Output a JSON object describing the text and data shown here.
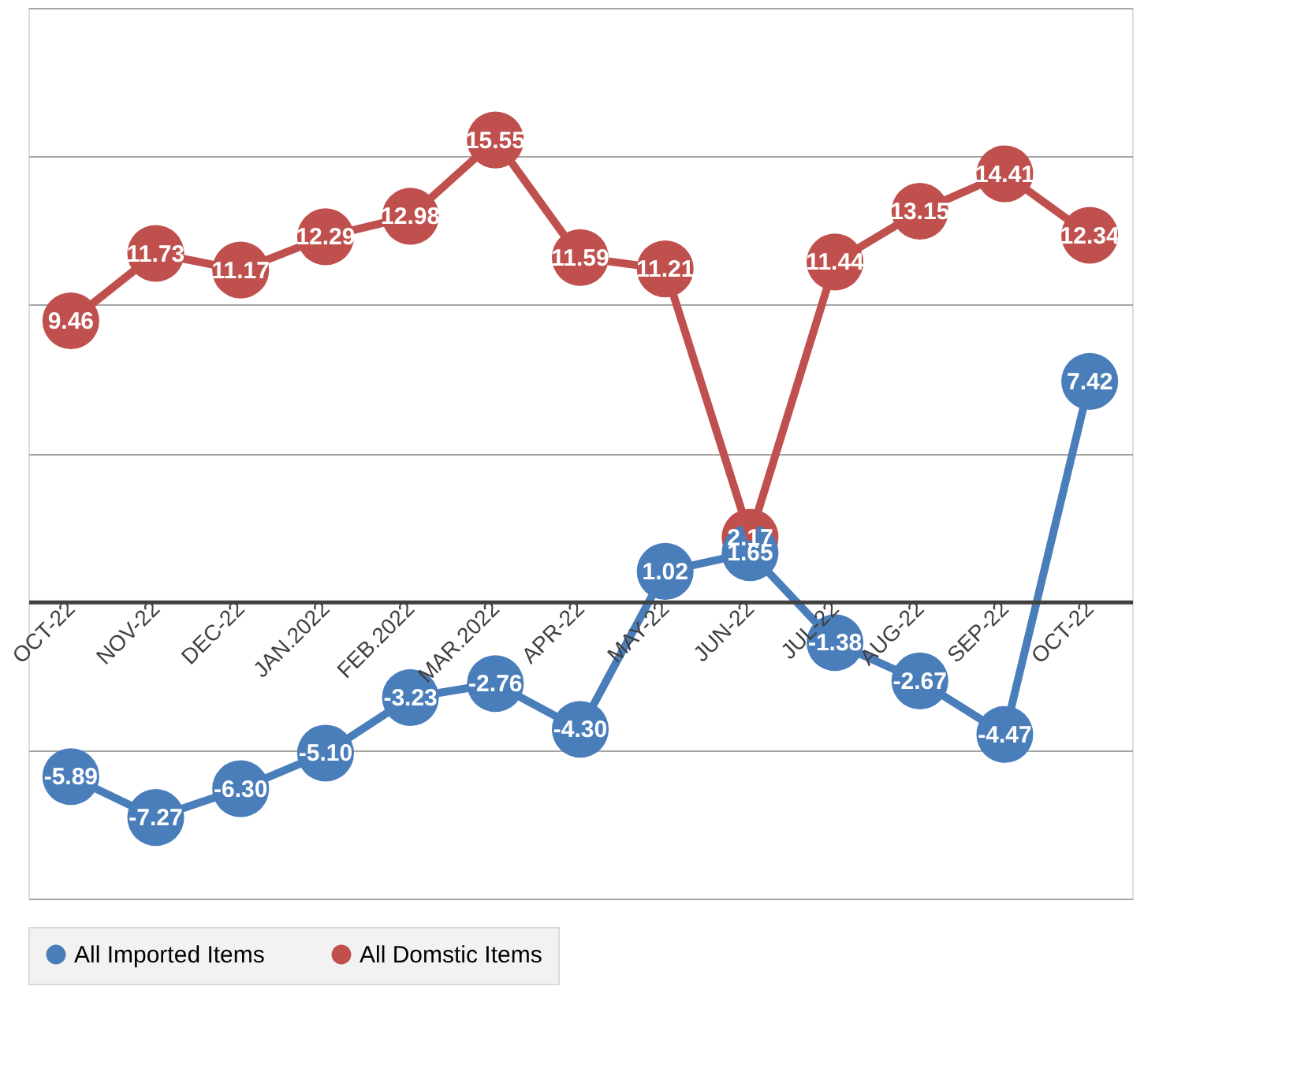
{
  "chart_data": {
    "type": "line",
    "categories": [
      "OCT-22",
      "NOV-22",
      "DEC-22",
      "JAN.2022",
      "FEB.2022",
      "MAR.2022",
      "APR-22",
      "MAY-22",
      "JUN-22",
      "JUL-22",
      "AUG-22",
      "SEP-22",
      "OCT-22"
    ],
    "series": [
      {
        "name": "All Imported Items",
        "color": "#4a7ebb",
        "values": [
          -5.89,
          -7.27,
          -6.3,
          -5.1,
          -3.23,
          -2.76,
          -4.3,
          1.02,
          1.65,
          -1.38,
          -2.67,
          -4.47,
          7.42
        ],
        "value_labels": [
          "-5.89",
          "-7.27",
          "-6.30",
          "-5.10",
          "-3.23",
          "-2.76",
          "-4.30",
          "1.02",
          "1.65",
          "-1.38",
          "-2.67",
          "-4.47",
          "7.42"
        ]
      },
      {
        "name": "All Domstic Items",
        "color": "#c0504d",
        "values": [
          9.46,
          11.73,
          11.17,
          12.29,
          12.98,
          15.55,
          11.59,
          11.21,
          2.17,
          11.44,
          13.15,
          14.41,
          12.34
        ]
      }
    ],
    "ylim": [
      -10,
      20
    ],
    "yticks": [
      {
        "value": -10,
        "label": null
      },
      {
        "value": -5,
        "label": null
      },
      {
        "value": 0,
        "label": null
      },
      {
        "value": 5,
        "label": null
      },
      {
        "value": 10,
        "label": null
      },
      {
        "value": 15,
        "label": null
      },
      {
        "value": 20,
        "label": null
      }
    ],
    "tick_labels": "x",
    "grid": "y",
    "legend": "bottom",
    "marker": "circle",
    "line_style": "solid",
    "data_labels": true
  }
}
